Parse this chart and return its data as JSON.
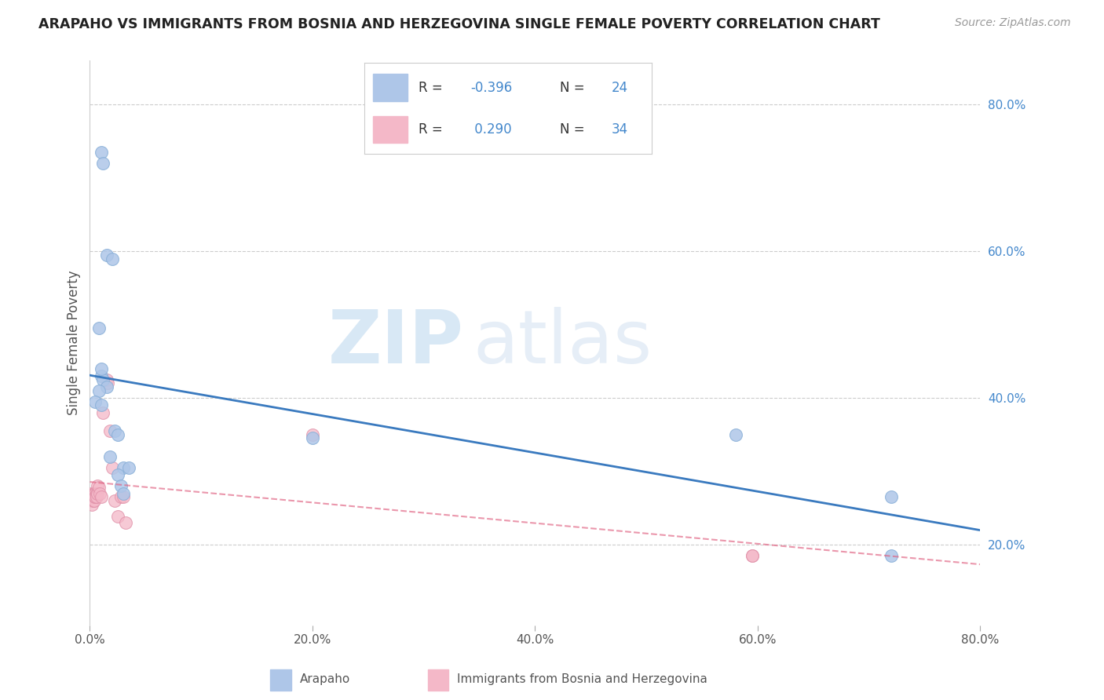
{
  "title": "ARAPAHO VS IMMIGRANTS FROM BOSNIA AND HERZEGOVINA SINGLE FEMALE POVERTY CORRELATION CHART",
  "source": "Source: ZipAtlas.com",
  "ylabel": "Single Female Poverty",
  "xlim": [
    0.0,
    0.8
  ],
  "ylim": [
    0.09,
    0.86
  ],
  "right_yticks": [
    0.2,
    0.4,
    0.6,
    0.8
  ],
  "right_ytick_labels": [
    "20.0%",
    "40.0%",
    "60.0%",
    "80.0%"
  ],
  "xtick_vals": [
    0.0,
    0.2,
    0.4,
    0.6,
    0.8
  ],
  "xtick_labels": [
    "0.0%",
    "20.0%",
    "40.0%",
    "60.0%",
    "80.0%"
  ],
  "arapaho_color": "#aec6e8",
  "arapaho_edge_color": "#8ab0d8",
  "arapaho_line_color": "#3a7abf",
  "bosnia_color": "#f4b8c8",
  "bosnia_edge_color": "#e090a8",
  "bosnia_line_color": "#e06080",
  "legend_R1": "-0.396",
  "legend_N1": "24",
  "legend_R2": "0.290",
  "legend_N2": "34",
  "watermark_zip": "ZIP",
  "watermark_atlas": "atlas",
  "arapaho_x": [
    0.01,
    0.012,
    0.015,
    0.02,
    0.008,
    0.01,
    0.012,
    0.015,
    0.008,
    0.005,
    0.01,
    0.018,
    0.022,
    0.025,
    0.03,
    0.035,
    0.025,
    0.028,
    0.03,
    0.2,
    0.58,
    0.72,
    0.72,
    0.01
  ],
  "arapaho_y": [
    0.735,
    0.72,
    0.595,
    0.59,
    0.495,
    0.43,
    0.425,
    0.415,
    0.41,
    0.395,
    0.39,
    0.32,
    0.355,
    0.35,
    0.305,
    0.305,
    0.295,
    0.28,
    0.27,
    0.345,
    0.35,
    0.265,
    0.185,
    0.44
  ],
  "bosnia_x": [
    0.001,
    0.001,
    0.002,
    0.002,
    0.002,
    0.003,
    0.003,
    0.003,
    0.004,
    0.004,
    0.004,
    0.005,
    0.005,
    0.005,
    0.006,
    0.006,
    0.007,
    0.007,
    0.008,
    0.009,
    0.01,
    0.012,
    0.015,
    0.016,
    0.018,
    0.02,
    0.022,
    0.025,
    0.028,
    0.03,
    0.032,
    0.2,
    0.595,
    0.595
  ],
  "bosnia_y": [
    0.27,
    0.265,
    0.265,
    0.26,
    0.255,
    0.27,
    0.265,
    0.26,
    0.27,
    0.265,
    0.26,
    0.27,
    0.265,
    0.265,
    0.27,
    0.265,
    0.28,
    0.27,
    0.278,
    0.27,
    0.265,
    0.38,
    0.425,
    0.42,
    0.355,
    0.305,
    0.26,
    0.238,
    0.265,
    0.265,
    0.23,
    0.35,
    0.185,
    0.185
  ]
}
